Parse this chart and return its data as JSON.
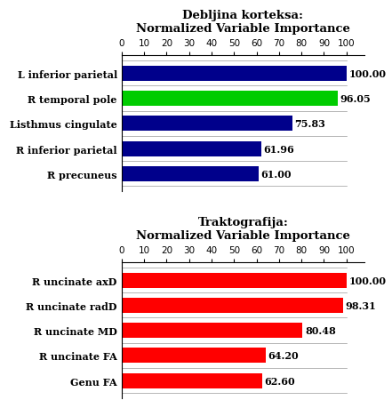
{
  "top": {
    "title_line1": "Debljina korteksa:",
    "title_line2": "Normalized Variable Importance",
    "categories": [
      "L inferior parietal",
      "R temporal pole",
      "Listhmus cingulate",
      "R inferior parietal",
      "R precuneus"
    ],
    "values": [
      100.0,
      96.05,
      75.83,
      61.96,
      61.0
    ],
    "colors": [
      "#00008B",
      "#00CC00",
      "#00008B",
      "#00008B",
      "#00008B"
    ],
    "labels": [
      "100.00",
      "96.05",
      "75.83",
      "61.96",
      "61.00"
    ],
    "xlim": [
      0,
      108
    ],
    "xticks": [
      0,
      10,
      20,
      30,
      40,
      50,
      60,
      70,
      80,
      90,
      100
    ]
  },
  "bottom": {
    "title_line1": "Traktografija:",
    "title_line2": "Normalized Variable Importance",
    "categories": [
      "R uncinate axD",
      "R uncinate radD",
      "R uncinate MD",
      "R uncinate FA",
      "Genu FA"
    ],
    "values": [
      100.0,
      98.31,
      80.48,
      64.2,
      62.6
    ],
    "colors": [
      "#FF0000",
      "#FF0000",
      "#FF0000",
      "#FF0000",
      "#FF0000"
    ],
    "labels": [
      "100.00",
      "98.31",
      "80.48",
      "64.20",
      "62.60"
    ],
    "xlim": [
      0,
      108
    ],
    "xticks": [
      0,
      10,
      20,
      30,
      40,
      50,
      60,
      70,
      80,
      90,
      100
    ]
  },
  "bg_color": "#FFFFFF",
  "title_fontsize": 9.5,
  "label_fontsize": 8,
  "tick_fontsize": 7.5,
  "value_fontsize": 8,
  "bar_height": 0.6
}
